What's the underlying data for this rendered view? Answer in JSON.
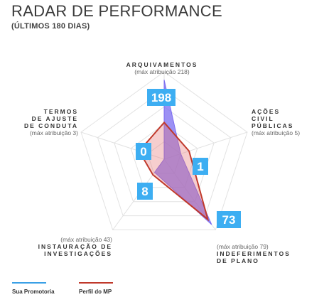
{
  "header": {
    "title": "RADAR DE PERFORMANCE",
    "subtitle": "(ÚLTIMOS 180 DIAS)"
  },
  "chart_data": {
    "type": "radar",
    "axes": [
      {
        "name_lines": [
          "ARQUIVAMENTOS"
        ],
        "note": "(máx atribuição 218)",
        "max": 218
      },
      {
        "name_lines": [
          "AÇÕES",
          "CIVIL",
          "PÚBLICAS"
        ],
        "note": "(máx atribuição 5)",
        "max": 5
      },
      {
        "name_lines": [
          "INDEFERIMENTOS",
          "DE PLANO"
        ],
        "note": "(máx atribuição 79)",
        "max": 79
      },
      {
        "name_lines": [
          "INSTAURAÇÃO DE",
          "INVESTIGAÇÕES"
        ],
        "note": "(máx atribuição 43)",
        "max": 43
      },
      {
        "name_lines": [
          "TERMOS",
          "DE AJUSTE",
          "DE CONDUTA"
        ],
        "note": "(máx atribuição 3)",
        "max": 3
      }
    ],
    "series": [
      {
        "name": "Sua Promotoria",
        "values": [
          198,
          1,
          73,
          8,
          0
        ],
        "color": "#7b6cf0"
      },
      {
        "name": "Perfil do MP",
        "values": [
          0.42,
          0.3,
          0.85,
          0.22,
          0.3
        ],
        "color": "#c0392b"
      }
    ],
    "value_labels": [
      "198",
      "1",
      "73",
      "8",
      "0"
    ],
    "badge_color": "#3daef2"
  },
  "legend": [
    {
      "label": "Sua Promotoria",
      "color": "#3aa0e6"
    },
    {
      "label": "Perfil do MP",
      "color": "#c0392b"
    }
  ]
}
